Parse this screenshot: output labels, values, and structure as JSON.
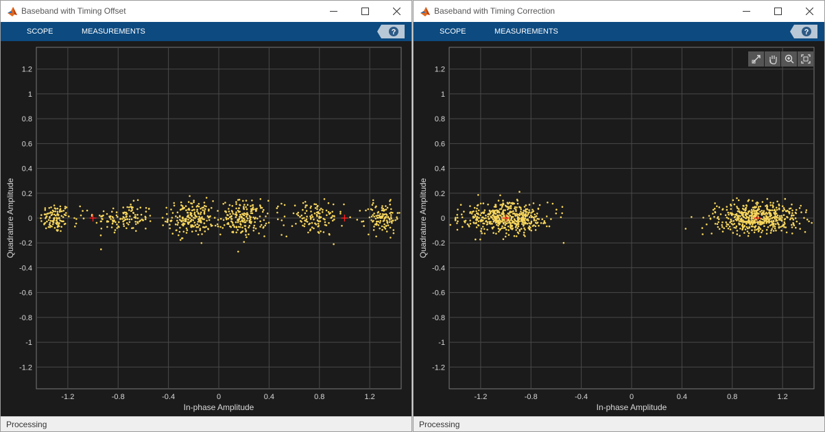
{
  "windows": [
    {
      "title": "Baseband with Timing Offset",
      "tabs": [
        "SCOPE",
        "MEASUREMENTS"
      ],
      "help_icon": "?",
      "status": "Processing",
      "plot": {
        "xlabel": "In-phase Amplitude",
        "ylabel": "Quadrature Amplitude",
        "x_ticks": [
          "-1.2",
          "-0.8",
          "-0.4",
          "0",
          "0.4",
          "0.8",
          "1.2"
        ],
        "y_ticks": [
          "1.2",
          "1",
          "0.8",
          "0.6",
          "0.4",
          "0.2",
          "0",
          "-0.2",
          "-0.4",
          "-0.6",
          "-0.8",
          "-1",
          "-1.2"
        ]
      }
    },
    {
      "title": "Baseband with Timing Correction",
      "tabs": [
        "SCOPE",
        "MEASUREMENTS"
      ],
      "help_icon": "?",
      "status": "Processing",
      "plot": {
        "xlabel": "In-phase Amplitude",
        "ylabel": "Quadrature Amplitude",
        "x_ticks": [
          "-1.2",
          "-0.8",
          "-0.4",
          "0",
          "0.4",
          "0.8",
          "1.2"
        ],
        "y_ticks": [
          "1.2",
          "1",
          "0.8",
          "0.6",
          "0.4",
          "0.2",
          "0",
          "-0.2",
          "-0.4",
          "-0.6",
          "-0.8",
          "-1",
          "-1.2"
        ]
      }
    }
  ],
  "colors": {
    "toolstrip": "#0c4a80",
    "plot_background": "#1b1b1b",
    "grid": "#4a4a4a",
    "points": "#f6d55c",
    "reference_marker": "#ff2020",
    "tick_label": "#d8d8d8"
  },
  "icons": [
    "matlab-logo-icon",
    "minimize-icon",
    "maximize-icon",
    "close-icon",
    "help-icon",
    "data-cursor-icon",
    "pan-icon",
    "zoom-in-icon",
    "fit-to-view-icon"
  ],
  "chart_data": [
    {
      "type": "scatter",
      "title": "",
      "xlabel": "In-phase Amplitude",
      "ylabel": "Quadrature Amplitude",
      "xlim": [
        -1.45,
        1.45
      ],
      "ylim": [
        -1.375,
        1.375
      ],
      "grid": true,
      "reference_points": [
        [
          -1,
          0
        ],
        [
          1,
          0
        ]
      ],
      "clusters": [
        {
          "cx": -1.3,
          "cy": 0,
          "sx": 0.06,
          "sy": 0.06,
          "n": 110
        },
        {
          "cx": -1.1,
          "cy": 0.02,
          "sx": 0.04,
          "sy": 0.05,
          "n": 8
        },
        {
          "cx": -0.75,
          "cy": 0,
          "sx": 0.12,
          "sy": 0.06,
          "n": 120
        },
        {
          "cx": -0.22,
          "cy": 0,
          "sx": 0.09,
          "sy": 0.07,
          "n": 200
        },
        {
          "cx": 0.2,
          "cy": 0,
          "sx": 0.09,
          "sy": 0.07,
          "n": 200
        },
        {
          "cx": 0.75,
          "cy": 0,
          "sx": 0.12,
          "sy": 0.07,
          "n": 120
        },
        {
          "cx": 1.3,
          "cy": 0,
          "sx": 0.07,
          "sy": 0.06,
          "n": 120
        }
      ]
    },
    {
      "type": "scatter",
      "title": "",
      "xlabel": "In-phase Amplitude",
      "ylabel": "Quadrature Amplitude",
      "xlim": [
        -1.45,
        1.45
      ],
      "ylim": [
        -1.375,
        1.375
      ],
      "grid": true,
      "reference_points": [
        [
          -1,
          0
        ],
        [
          1,
          0
        ]
      ],
      "clusters": [
        {
          "cx": -1.0,
          "cy": 0,
          "sx": 0.17,
          "sy": 0.06,
          "n": 520
        },
        {
          "cx": 1.0,
          "cy": 0,
          "sx": 0.17,
          "sy": 0.06,
          "n": 520
        }
      ]
    }
  ]
}
